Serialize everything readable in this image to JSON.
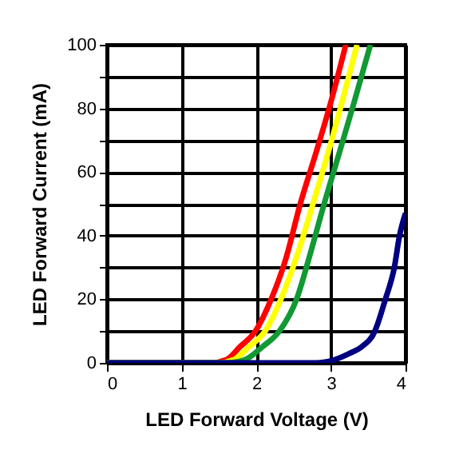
{
  "chart_data": {
    "type": "line",
    "xlabel": "LED Forward Voltage (V)",
    "ylabel": "LED Forward Current (mA)",
    "xlim": [
      0,
      4
    ],
    "ylim": [
      0,
      100
    ],
    "xticks": [
      0,
      1,
      2,
      3,
      4
    ],
    "yticks": [
      0,
      {
        "value": 10,
        "label": null
      },
      20,
      {
        "value": 30,
        "label": null
      },
      40,
      {
        "value": 50,
        "label": null
      },
      60,
      {
        "value": 70,
        "label": null
      },
      80,
      {
        "value": 90,
        "label": null
      },
      100
    ],
    "grid": true,
    "marker": "none",
    "line_style": "solid",
    "series": [
      {
        "color": "#ff0000",
        "x": [
          0,
          1.4,
          1.6,
          1.78,
          1.99,
          2.2,
          2.4,
          2.59,
          2.8,
          3.0,
          3.2
        ],
        "values": [
          0,
          0,
          1,
          5,
          10,
          20,
          33,
          50,
          66,
          82,
          100
        ]
      },
      {
        "color": "#ffff00",
        "x": [
          0,
          1.5,
          1.7,
          1.9,
          2.12,
          2.33,
          2.55,
          2.76,
          2.95,
          3.15,
          3.35
        ],
        "values": [
          0,
          0,
          1,
          5,
          10,
          20,
          34,
          50,
          65,
          82,
          100
        ]
      },
      {
        "color": "#119933",
        "x": [
          0,
          1.6,
          1.85,
          2.08,
          2.31,
          2.54,
          2.72,
          2.91,
          3.1,
          3.3,
          3.53
        ],
        "values": [
          0,
          0,
          1,
          5,
          10,
          20,
          34,
          50,
          65,
          81,
          100
        ]
      },
      {
        "color": "#000080",
        "x": [
          0,
          2.8,
          3.05,
          3.25,
          3.41,
          3.59,
          3.73,
          3.85,
          3.92,
          4.0
        ],
        "values": [
          0,
          0,
          1,
          3,
          5,
          10,
          20,
          30,
          40,
          47
        ]
      }
    ]
  }
}
